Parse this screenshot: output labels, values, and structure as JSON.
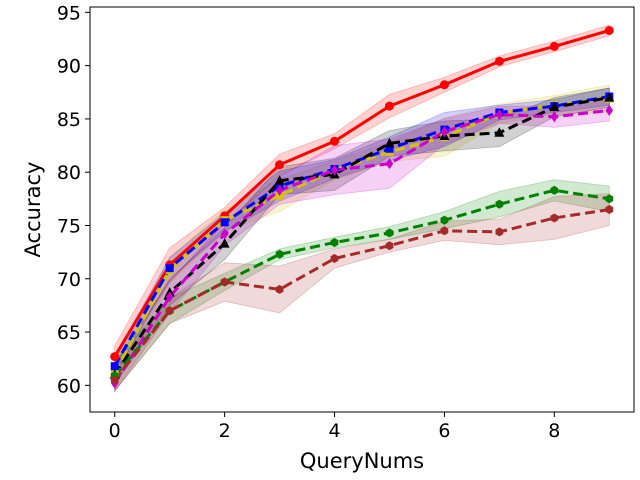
{
  "chart_data": {
    "type": "line",
    "title": "",
    "xlabel": "QueryNums",
    "ylabel": "Accuracy",
    "xlim": [
      -0.45,
      9.45
    ],
    "ylim": [
      57.5,
      95.5
    ],
    "xticks": [
      0,
      2,
      4,
      6,
      8
    ],
    "yticks": [
      60,
      65,
      70,
      75,
      80,
      85,
      90,
      95
    ],
    "grid": false,
    "legend": "none",
    "x": [
      0,
      1,
      2,
      3,
      4,
      5,
      6,
      7,
      8,
      9
    ],
    "series": [
      {
        "name": "red",
        "color": "#ff0000",
        "dash": "solid",
        "marker": "circle",
        "values": [
          62.7,
          71.3,
          75.9,
          80.7,
          82.9,
          86.2,
          88.2,
          90.4,
          91.8,
          93.3
        ],
        "band": [
          1.0,
          1.6,
          0.8,
          1.0,
          0.7,
          1.1,
          0.7,
          0.5,
          0.5,
          0.5
        ]
      },
      {
        "name": "yellow",
        "color": "#d4c400",
        "dash": "dashed",
        "marker": "square",
        "values": [
          61.2,
          70.8,
          75.5,
          77.8,
          80.2,
          81.9,
          83.3,
          85.5,
          86.3,
          86.9
        ],
        "band": [
          1.0,
          1.2,
          1.0,
          1.5,
          0.9,
          0.9,
          1.8,
          0.9,
          0.9,
          1.3
        ]
      },
      {
        "name": "blue",
        "color": "#0000ff",
        "dash": "dashed",
        "marker": "square",
        "values": [
          61.8,
          71.0,
          75.3,
          78.7,
          80.3,
          82.2,
          84.0,
          85.6,
          86.2,
          87.1
        ],
        "band": [
          0.8,
          1.0,
          0.9,
          1.4,
          0.9,
          1.1,
          1.6,
          0.7,
          0.6,
          0.8
        ]
      },
      {
        "name": "black",
        "color": "#000000",
        "dash": "dashed",
        "marker": "triangle",
        "values": [
          61.0,
          68.7,
          73.3,
          79.2,
          79.8,
          82.7,
          83.4,
          83.7,
          86.1,
          87.0
        ],
        "band": [
          0.9,
          1.2,
          1.5,
          1.3,
          1.5,
          1.2,
          1.4,
          1.3,
          0.9,
          0.9
        ]
      },
      {
        "name": "magenta",
        "color": "#cc00cc",
        "dash": "dashed",
        "marker": "diamond",
        "values": [
          60.2,
          68.3,
          74.2,
          78.3,
          80.2,
          80.8,
          83.8,
          85.4,
          85.2,
          85.8
        ],
        "band": [
          0.8,
          1.5,
          1.1,
          1.3,
          2.3,
          2.3,
          1.2,
          0.8,
          1.0,
          1.0
        ]
      },
      {
        "name": "green",
        "color": "#008000",
        "dash": "dashed",
        "marker": "hexagon",
        "values": [
          60.9,
          67.0,
          69.7,
          72.3,
          73.4,
          74.3,
          75.5,
          77.0,
          78.3,
          77.5
        ],
        "band": [
          1.4,
          1.2,
          0.8,
          0.5,
          0.5,
          0.6,
          0.8,
          1.2,
          1.0,
          1.2
        ]
      },
      {
        "name": "brown",
        "color": "#a52a2a",
        "dash": "dashed",
        "marker": "hexagon",
        "values": [
          60.5,
          67.0,
          69.7,
          69.0,
          71.9,
          73.1,
          74.5,
          74.4,
          75.7,
          76.5
        ],
        "band": [
          1.0,
          1.2,
          1.8,
          2.2,
          0.9,
          0.6,
          0.9,
          1.2,
          2.0,
          1.5
        ]
      }
    ]
  }
}
